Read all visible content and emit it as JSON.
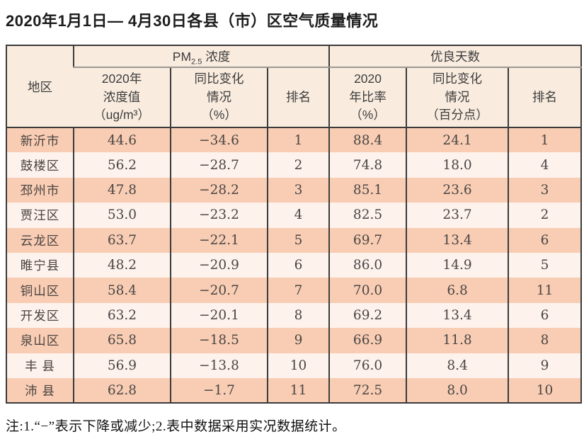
{
  "title": "2020年1月1日— 4月30日各县（市）区空气质量情况",
  "table": {
    "region_header": "地区",
    "pm_group": {
      "main": "PM",
      "sub": "2.5",
      "rest": " 浓度"
    },
    "days_group": "优良天数",
    "sub_headers": [
      "2020年\n浓度值\n（ug/m³）",
      "同比变化\n情况\n（%）",
      "排名",
      "2020\n年比率\n（%）",
      "同比变化\n情况\n（百分点）",
      "排名"
    ],
    "rows": [
      {
        "region": "新沂市",
        "pm_value": "44.6",
        "pm_change": "−34.6",
        "pm_rank": "1",
        "days_ratio": "88.4",
        "days_change": "24.1",
        "days_rank": "1"
      },
      {
        "region": "鼓楼区",
        "pm_value": "56.2",
        "pm_change": "−28.7",
        "pm_rank": "2",
        "days_ratio": "74.8",
        "days_change": "18.0",
        "days_rank": "4"
      },
      {
        "region": "邳州市",
        "pm_value": "47.8",
        "pm_change": "−28.2",
        "pm_rank": "3",
        "days_ratio": "85.1",
        "days_change": "23.6",
        "days_rank": "3"
      },
      {
        "region": "贾汪区",
        "pm_value": "53.0",
        "pm_change": "−23.2",
        "pm_rank": "4",
        "days_ratio": "82.5",
        "days_change": "23.7",
        "days_rank": "2"
      },
      {
        "region": "云龙区",
        "pm_value": "63.7",
        "pm_change": "−22.1",
        "pm_rank": "5",
        "days_ratio": "69.7",
        "days_change": "13.4",
        "days_rank": "6"
      },
      {
        "region": "睢宁县",
        "pm_value": "48.2",
        "pm_change": "−20.9",
        "pm_rank": "6",
        "days_ratio": "86.0",
        "days_change": "14.9",
        "days_rank": "5"
      },
      {
        "region": "铜山区",
        "pm_value": "58.4",
        "pm_change": "−20.7",
        "pm_rank": "7",
        "days_ratio": "70.0",
        "days_change": "6.8",
        "days_rank": "11"
      },
      {
        "region": "开发区",
        "pm_value": "63.2",
        "pm_change": "−20.1",
        "pm_rank": "8",
        "days_ratio": "69.2",
        "days_change": "13.4",
        "days_rank": "6"
      },
      {
        "region": "泉山区",
        "pm_value": "65.8",
        "pm_change": "−18.5",
        "pm_rank": "9",
        "days_ratio": "66.9",
        "days_change": "11.8",
        "days_rank": "8"
      },
      {
        "region": "丰 县",
        "pm_value": "56.9",
        "pm_change": "−13.8",
        "pm_rank": "10",
        "days_ratio": "76.0",
        "days_change": "8.4",
        "days_rank": "9"
      },
      {
        "region": "沛 县",
        "pm_value": "62.8",
        "pm_change": "−1.7",
        "pm_rank": "11",
        "days_ratio": "72.5",
        "days_change": "8.0",
        "days_rank": "10"
      }
    ]
  },
  "note": "注:1.“−”表示下降或减少;2.表中数据采用实况数据统计。"
}
